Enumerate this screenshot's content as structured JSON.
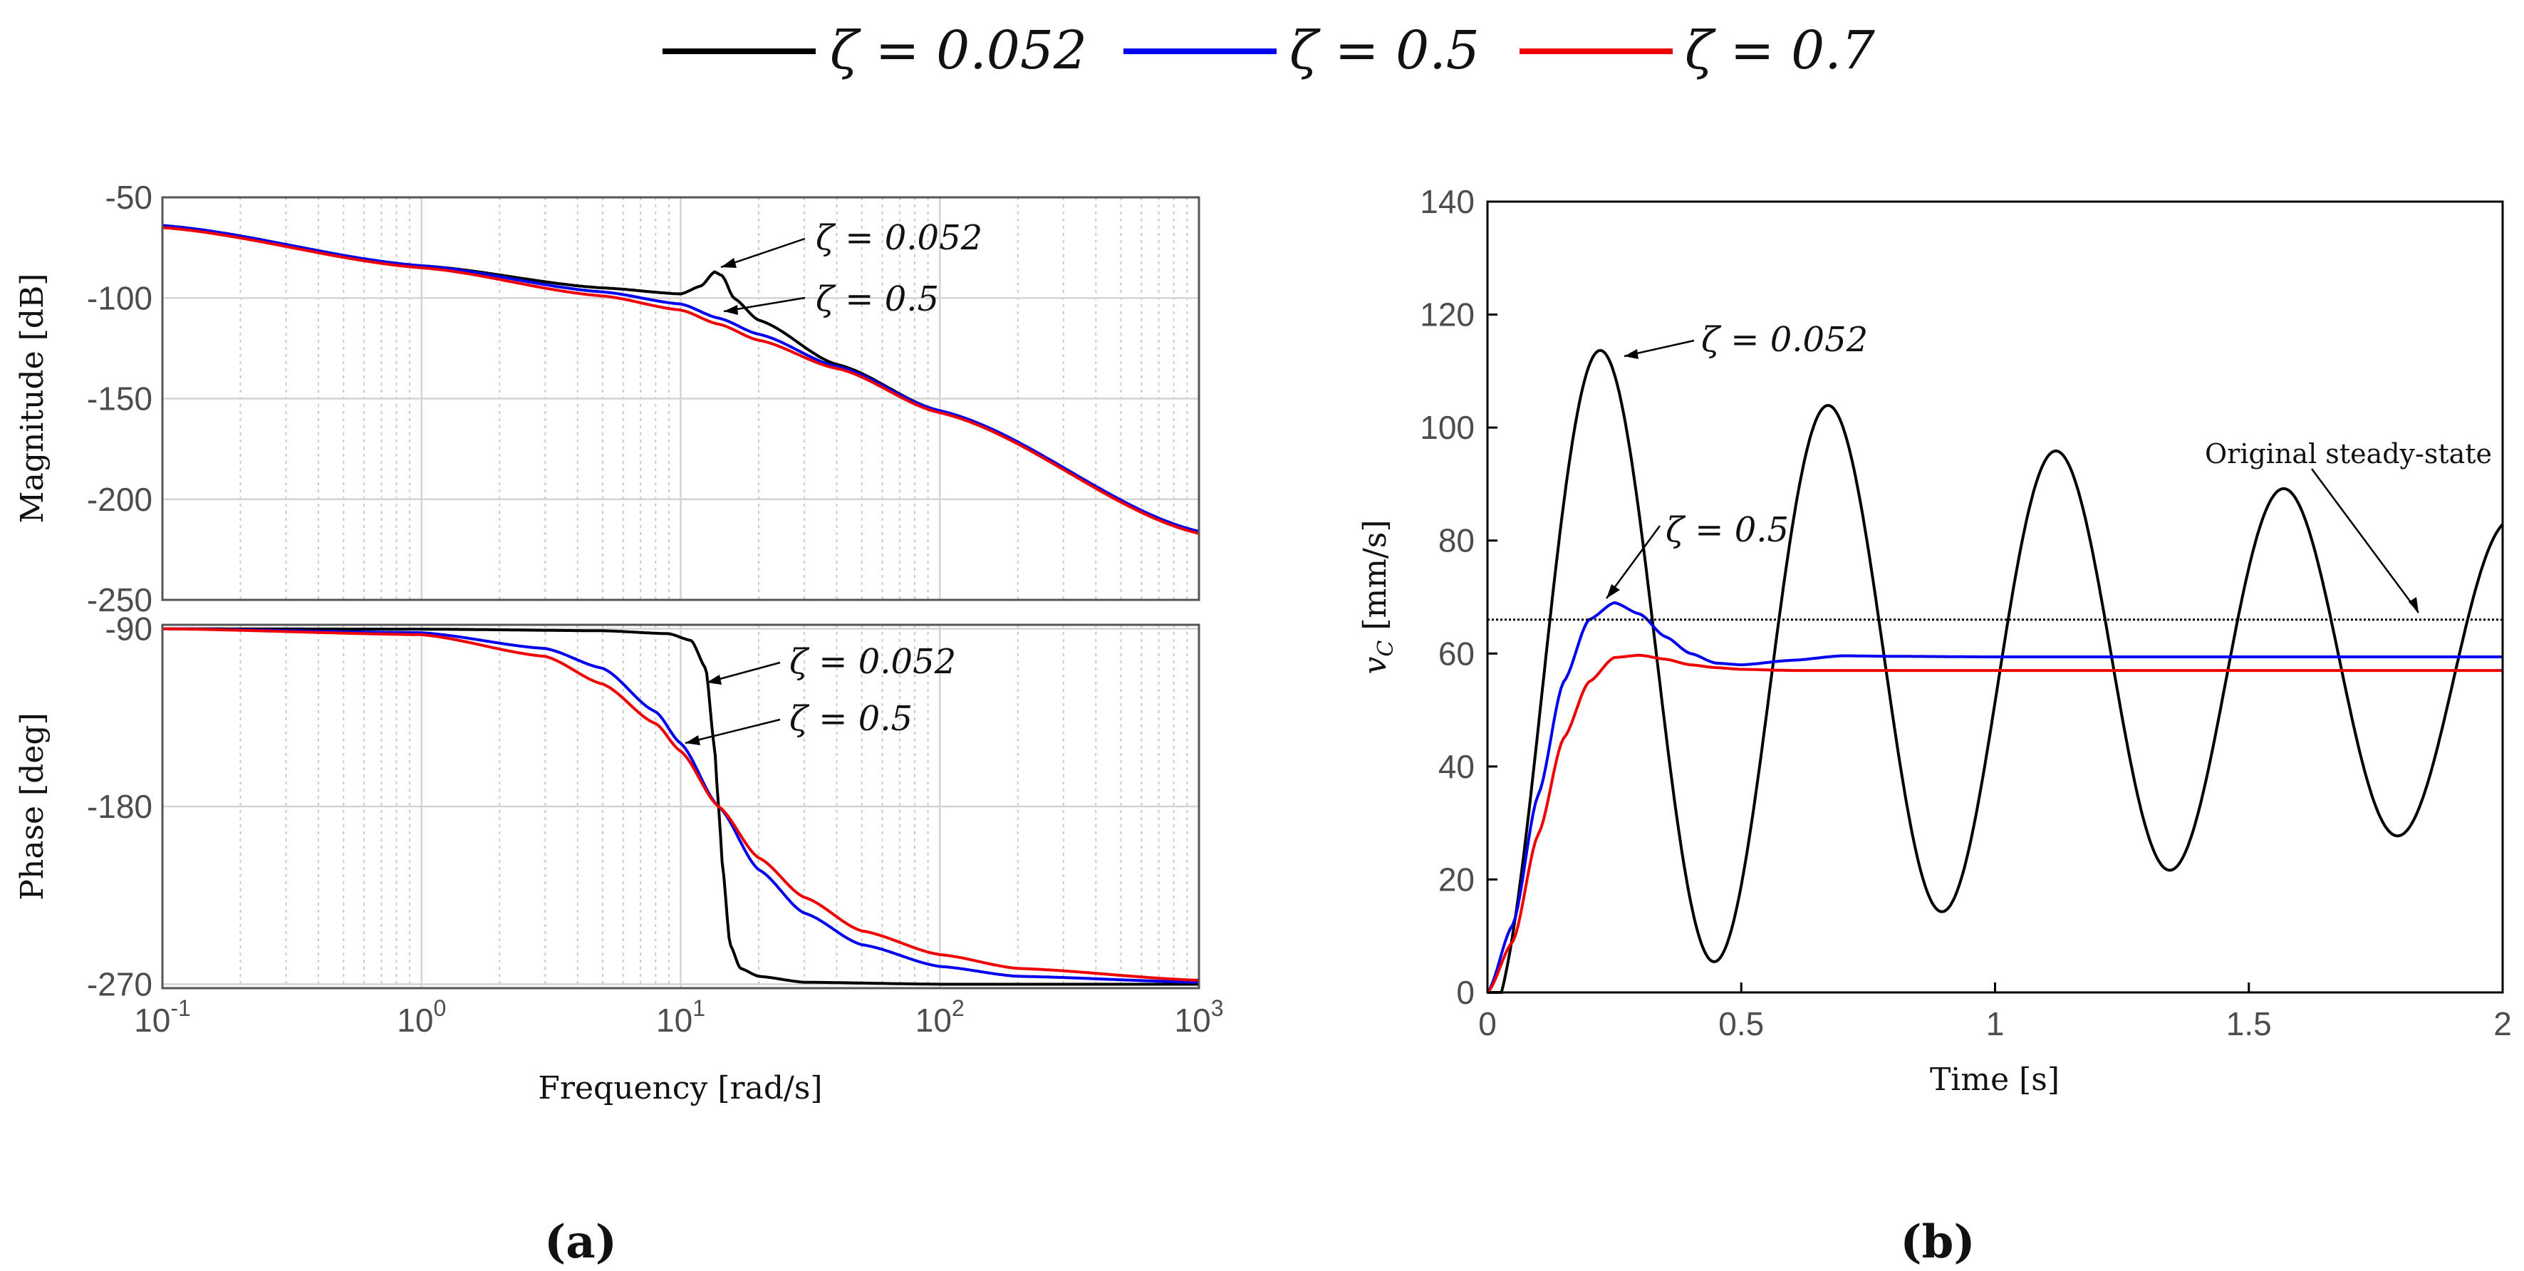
{
  "legend": {
    "entries": [
      {
        "label": "ζ = 0.052",
        "color": "#000000"
      },
      {
        "label": "ζ = 0.5",
        "color": "#0000ee"
      },
      {
        "label": "ζ = 0.7",
        "color": "#ee0000"
      }
    ]
  },
  "panels": {
    "a_label": "(a)",
    "b_label": "(b)"
  },
  "annotations": {
    "mag_zeta_low": "ζ = 0.052",
    "mag_zeta_mid": "ζ = 0.5",
    "phase_zeta_low": "ζ = 0.052",
    "phase_zeta_mid": "ζ = 0.5",
    "time_zeta_low": "ζ = 0.052",
    "time_zeta_mid": "ζ = 0.5",
    "steady_state": "Original steady-state"
  },
  "chart_data": [
    {
      "id": "bode-magnitude",
      "type": "line",
      "ylabel": "Magnitude [dB]",
      "xscale": "log",
      "xlim": [
        0.1,
        1000
      ],
      "ylim": [
        -250,
        -50
      ],
      "yticks": [
        -50,
        -100,
        -150,
        -200,
        -250
      ],
      "grid": true,
      "series": [
        {
          "name": "ζ = 0.052",
          "color": "#000000",
          "x": [
            0.1,
            1,
            5,
            10,
            12,
            13.5,
            14.5,
            16,
            20,
            40,
            100,
            1000
          ],
          "y": [
            -64,
            -84,
            -95,
            -98,
            -94,
            -87,
            -89,
            -100,
            -111,
            -133,
            -156,
            -216
          ]
        },
        {
          "name": "ζ = 0.5",
          "color": "#0000ee",
          "x": [
            0.1,
            1,
            5,
            10,
            14,
            20,
            40,
            100,
            1000
          ],
          "y": [
            -64,
            -84,
            -97,
            -103,
            -110,
            -118,
            -134,
            -156,
            -216
          ]
        },
        {
          "name": "ζ = 0.7",
          "color": "#ee0000",
          "x": [
            0.1,
            1,
            5,
            10,
            14,
            20,
            40,
            100,
            1000
          ],
          "y": [
            -65,
            -85,
            -99,
            -106,
            -113,
            -121,
            -135,
            -157,
            -217
          ]
        }
      ]
    },
    {
      "id": "bode-phase",
      "type": "line",
      "xlabel": "Frequency [rad/s]",
      "ylabel": "Phase [deg]",
      "xscale": "log",
      "xlim": [
        0.1,
        1000
      ],
      "ylim": [
        -272,
        -88
      ],
      "yticks": [
        -90,
        -180,
        -270
      ],
      "xticks": [
        "10-1",
        "100",
        "101",
        "102",
        "103"
      ],
      "grid": true,
      "series": [
        {
          "name": "ζ = 0.052",
          "color": "#000000",
          "x": [
            0.1,
            1,
            5,
            9,
            11,
            12.5,
            13.5,
            14,
            14.5,
            15.5,
            17,
            20,
            30,
            100,
            1000
          ],
          "y": [
            -90,
            -90.2,
            -91,
            -92.5,
            -96,
            -110,
            -150,
            -180,
            -210,
            -250,
            -262,
            -266,
            -269,
            -270,
            -270
          ]
        },
        {
          "name": "ζ = 0.5",
          "color": "#0000ee",
          "x": [
            0.1,
            1,
            3,
            5,
            8,
            10,
            14,
            20,
            30,
            50,
            100,
            200,
            1000
          ],
          "y": [
            -90,
            -92,
            -100,
            -110,
            -132,
            -148,
            -180,
            -212,
            -234,
            -250,
            -261,
            -266,
            -269
          ]
        },
        {
          "name": "ζ = 0.7",
          "color": "#ee0000",
          "x": [
            0.1,
            1,
            3,
            5,
            8,
            10,
            14,
            20,
            30,
            50,
            100,
            200,
            1000
          ],
          "y": [
            -90,
            -93,
            -104,
            -118,
            -138,
            -152,
            -180,
            -206,
            -226,
            -243,
            -255,
            -262,
            -268
          ]
        }
      ]
    },
    {
      "id": "step-response",
      "type": "line",
      "xlabel": "Time [s]",
      "ylabel": "vC [mm/s]",
      "xlim": [
        0,
        2
      ],
      "ylim": [
        0,
        140
      ],
      "xticks": [
        0,
        0.5,
        1,
        1.5,
        2
      ],
      "yticks": [
        0,
        20,
        40,
        60,
        80,
        100,
        120,
        140
      ],
      "grid": false,
      "series": [
        {
          "name": "ζ = 0.052",
          "color": "#000000",
          "model": {
            "steady": 57,
            "amplitude": 63.5,
            "decay": 0.42,
            "omega": 14,
            "phase_offset": 1.571
          }
        },
        {
          "name": "ζ = 0.5",
          "color": "#0000ee",
          "x": [
            0,
            0.05,
            0.1,
            0.15,
            0.2,
            0.25,
            0.3,
            0.35,
            0.4,
            0.45,
            0.5,
            0.6,
            0.7,
            0.8,
            1.0,
            1.5,
            2.0
          ],
          "y": [
            0,
            12,
            35,
            55,
            66,
            69,
            67,
            63,
            60,
            58.3,
            58,
            58.8,
            59.6,
            59.5,
            59.4,
            59.4,
            59.4
          ]
        },
        {
          "name": "ζ = 0.7",
          "color": "#ee0000",
          "x": [
            0,
            0.05,
            0.1,
            0.15,
            0.2,
            0.25,
            0.3,
            0.35,
            0.4,
            0.45,
            0.5,
            0.6,
            0.8,
            1.0,
            1.5,
            2.0
          ],
          "y": [
            0,
            9,
            28,
            45,
            55,
            59.3,
            59.7,
            59,
            58,
            57.5,
            57.2,
            57,
            57,
            57,
            57,
            57
          ]
        },
        {
          "name": "Original steady-state",
          "color": "#000000",
          "style": "dotted",
          "x": [
            0,
            2
          ],
          "y": [
            66,
            66
          ]
        }
      ]
    }
  ]
}
